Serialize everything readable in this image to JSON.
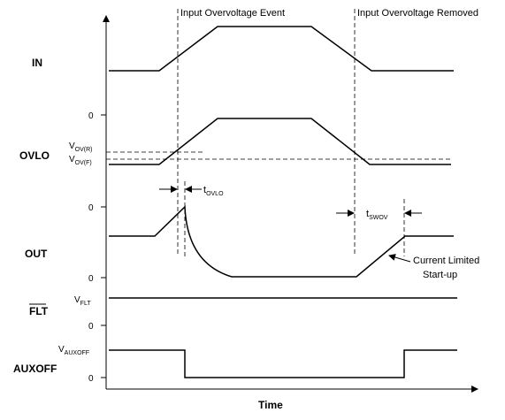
{
  "time_label": "Time",
  "events": {
    "overvoltage_event": "Input Overvoltage Event",
    "overvoltage_removed": "Input Overvoltage Removed"
  },
  "signals": {
    "in": "IN",
    "ovlo": "OVLO",
    "out": "OUT",
    "flt": "FLT",
    "auxoff": "AUXOFF"
  },
  "levels": {
    "zero": "0",
    "vovr_main": "V",
    "vovr_sub": "OV(R)",
    "vovf_main": "V",
    "vovf_sub": "OV(F)",
    "vflt_main": "V",
    "vflt_sub": "FLT",
    "vauxoff_main": "V",
    "vauxoff_sub": "AUXOFF"
  },
  "timing": {
    "tovlo_main": "t",
    "tovlo_sub": "OVLO",
    "tswov_main": "t",
    "tswov_sub": "SWOV"
  },
  "annotations": {
    "current_limited": "Current Limited",
    "startup": "Start-up"
  }
}
